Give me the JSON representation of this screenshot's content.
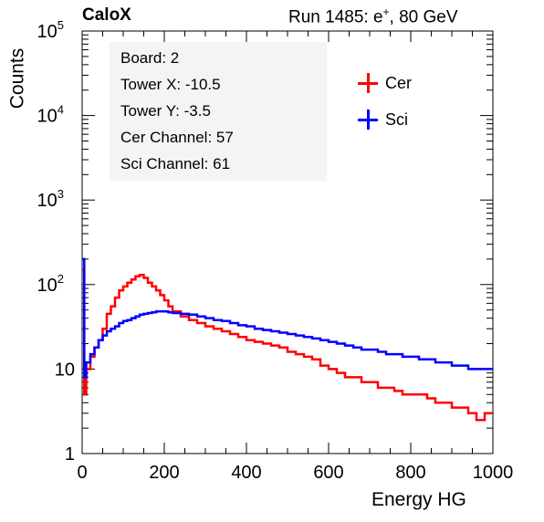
{
  "header": {
    "experiment": "CaloX",
    "run_prefix": "Run 1485: e",
    "run_sup": "+",
    "run_suffix": ", 80 GeV"
  },
  "info_box": {
    "lines": [
      "Board: 2",
      "Tower X: -10.5",
      "Tower Y: -3.5",
      "Cer Channel: 57",
      "Sci Channel: 61"
    ]
  },
  "legend": {
    "items": [
      {
        "label": "Cer",
        "color": "#ff0000"
      },
      {
        "label": "Sci",
        "color": "#0000ff"
      }
    ]
  },
  "chart_data": {
    "type": "line",
    "xlabel": "Energy HG",
    "ylabel": "Counts",
    "xlim": [
      0,
      1000
    ],
    "ylim": [
      1,
      100000
    ],
    "yscale": "log",
    "xticks": [
      0,
      200,
      400,
      600,
      800,
      1000
    ],
    "yticks": [
      {
        "base": "1",
        "exp": ""
      },
      {
        "base": "10",
        "exp": ""
      },
      {
        "base": "10",
        "exp": "2"
      },
      {
        "base": "10",
        "exp": "3"
      },
      {
        "base": "10",
        "exp": "4"
      },
      {
        "base": "10",
        "exp": "5"
      }
    ],
    "series": [
      {
        "name": "Cer",
        "color": "#ff0000",
        "x": [
          0,
          5,
          10,
          20,
          30,
          40,
          50,
          60,
          70,
          80,
          90,
          100,
          110,
          120,
          130,
          140,
          150,
          160,
          170,
          180,
          190,
          200,
          210,
          220,
          240,
          260,
          280,
          300,
          320,
          340,
          360,
          380,
          400,
          420,
          440,
          460,
          480,
          500,
          520,
          540,
          560,
          580,
          600,
          620,
          640,
          660,
          680,
          700,
          720,
          740,
          760,
          780,
          800,
          820,
          840,
          860,
          880,
          900,
          920,
          940,
          960,
          980,
          1000
        ],
        "y": [
          150,
          5,
          10,
          14,
          18,
          22,
          30,
          45,
          55,
          70,
          85,
          95,
          105,
          115,
          125,
          130,
          120,
          105,
          95,
          85,
          75,
          65,
          55,
          48,
          42,
          38,
          35,
          32,
          30,
          28,
          26,
          24,
          22,
          21,
          20,
          19,
          18,
          16,
          15,
          14,
          13,
          11,
          10,
          9,
          8,
          8,
          7,
          7,
          6,
          6,
          5.5,
          5,
          5,
          5,
          4.5,
          4,
          4,
          3.5,
          3.5,
          3,
          2.5,
          3,
          3
        ]
      },
      {
        "name": "Sci",
        "color": "#0000ff",
        "x": [
          0,
          5,
          10,
          20,
          30,
          40,
          50,
          60,
          70,
          80,
          90,
          100,
          110,
          120,
          130,
          140,
          150,
          160,
          170,
          180,
          190,
          200,
          210,
          220,
          240,
          260,
          280,
          300,
          320,
          340,
          360,
          380,
          400,
          420,
          440,
          460,
          480,
          500,
          520,
          540,
          560,
          580,
          600,
          620,
          640,
          660,
          680,
          700,
          720,
          740,
          760,
          780,
          800,
          820,
          840,
          860,
          880,
          900,
          920,
          940,
          960,
          980,
          1000
        ],
        "y": [
          200,
          8,
          12,
          15,
          18,
          22,
          25,
          28,
          30,
          32,
          35,
          37,
          38,
          40,
          42,
          44,
          45,
          46,
          47,
          48,
          48,
          48,
          47,
          46,
          45,
          44,
          42,
          40,
          38,
          37,
          35,
          33,
          32,
          30,
          29,
          28,
          27,
          26,
          25,
          24,
          23,
          22,
          21,
          20,
          19,
          18,
          17,
          17,
          16,
          15,
          15,
          14,
          14,
          13,
          13,
          12,
          12,
          11,
          11,
          10,
          10,
          10,
          10
        ]
      }
    ]
  }
}
